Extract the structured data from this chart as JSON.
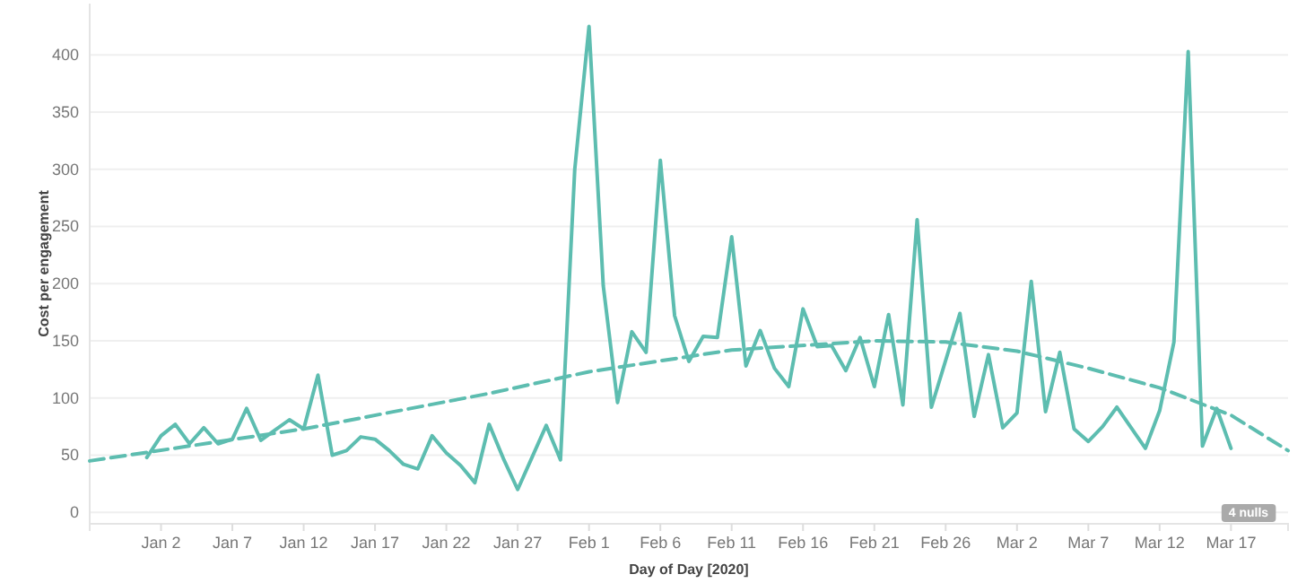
{
  "chart_data": {
    "type": "line",
    "xlabel": "Day of Day [2020]",
    "ylabel": "Cost per engagement",
    "xlim": [
      "2019-12-28",
      "2020-03-21"
    ],
    "ylim": [
      -10,
      445
    ],
    "xticks": [
      {
        "value": "2020-01-02",
        "label": "Jan 2"
      },
      {
        "value": "2020-01-07",
        "label": "Jan 7"
      },
      {
        "value": "2020-01-12",
        "label": "Jan 12"
      },
      {
        "value": "2020-01-17",
        "label": "Jan 17"
      },
      {
        "value": "2020-01-22",
        "label": "Jan 22"
      },
      {
        "value": "2020-01-27",
        "label": "Jan 27"
      },
      {
        "value": "2020-02-01",
        "label": "Feb 1"
      },
      {
        "value": "2020-02-06",
        "label": "Feb 6"
      },
      {
        "value": "2020-02-11",
        "label": "Feb 11"
      },
      {
        "value": "2020-02-16",
        "label": "Feb 16"
      },
      {
        "value": "2020-02-21",
        "label": "Feb 21"
      },
      {
        "value": "2020-02-26",
        "label": "Feb 26"
      },
      {
        "value": "2020-03-02",
        "label": "Mar 2"
      },
      {
        "value": "2020-03-07",
        "label": "Mar 7"
      },
      {
        "value": "2020-03-12",
        "label": "Mar 12"
      },
      {
        "value": "2020-03-17",
        "label": "Mar 17"
      }
    ],
    "yticks": [
      0,
      50,
      100,
      150,
      200,
      250,
      300,
      350,
      400
    ],
    "grid": "y",
    "annotations": [
      "4 nulls"
    ],
    "series": [
      {
        "color": "#5dbdb0",
        "line_style": "solid",
        "x": [
          "2020-01-01",
          "2020-01-02",
          "2020-01-03",
          "2020-01-04",
          "2020-01-05",
          "2020-01-06",
          "2020-01-07",
          "2020-01-08",
          "2020-01-09",
          "2020-01-10",
          "2020-01-11",
          "2020-01-12",
          "2020-01-13",
          "2020-01-14",
          "2020-01-15",
          "2020-01-16",
          "2020-01-17",
          "2020-01-18",
          "2020-01-19",
          "2020-01-20",
          "2020-01-21",
          "2020-01-22",
          "2020-01-23",
          "2020-01-24",
          "2020-01-25",
          "2020-01-26",
          "2020-01-27",
          "2020-01-28",
          "2020-01-29",
          "2020-01-30",
          "2020-01-31",
          "2020-02-01",
          "2020-02-02",
          "2020-02-03",
          "2020-02-04",
          "2020-02-05",
          "2020-02-06",
          "2020-02-07",
          "2020-02-08",
          "2020-02-09",
          "2020-02-10",
          "2020-02-11",
          "2020-02-12",
          "2020-02-13",
          "2020-02-14",
          "2020-02-15",
          "2020-02-16",
          "2020-02-17",
          "2020-02-18",
          "2020-02-19",
          "2020-02-20",
          "2020-02-21",
          "2020-02-22",
          "2020-02-23",
          "2020-02-24",
          "2020-02-25",
          "2020-02-26",
          "2020-02-27",
          "2020-02-28",
          "2020-02-29",
          "2020-03-01",
          "2020-03-02",
          "2020-03-03",
          "2020-03-04",
          "2020-03-05",
          "2020-03-06",
          "2020-03-07",
          "2020-03-08",
          "2020-03-09",
          "2020-03-10",
          "2020-03-11",
          "2020-03-12",
          "2020-03-13",
          "2020-03-14",
          "2020-03-15",
          "2020-03-16",
          "2020-03-17"
        ],
        "values": [
          48,
          67,
          77,
          60,
          74,
          60,
          64,
          91,
          63,
          72,
          81,
          73,
          120,
          50,
          54,
          66,
          64,
          54,
          42,
          38,
          67,
          52,
          41,
          26,
          77,
          47,
          20,
          48,
          76,
          46,
          300,
          425,
          198,
          96,
          158,
          140,
          308,
          172,
          132,
          154,
          153,
          241,
          128,
          159,
          126,
          110,
          178,
          145,
          146,
          124,
          153,
          110,
          173,
          94,
          256,
          92,
          133,
          174,
          84,
          138,
          74,
          87,
          202,
          88,
          140,
          73,
          62,
          75,
          92,
          74,
          56,
          89,
          149,
          403,
          58,
          91,
          56
        ]
      },
      {
        "type": "line",
        "color": "#5dbdb0",
        "line_style": "dashed",
        "x": [
          "2019-12-28",
          "2020-01-12",
          "2020-01-25",
          "2020-02-01",
          "2020-02-11",
          "2020-02-21",
          "2020-02-26",
          "2020-03-02",
          "2020-03-07",
          "2020-03-12",
          "2020-03-17",
          "2020-03-21"
        ],
        "values": [
          45,
          73,
          104,
          123,
          142,
          150,
          149,
          141,
          126,
          109,
          85,
          54
        ]
      }
    ]
  }
}
